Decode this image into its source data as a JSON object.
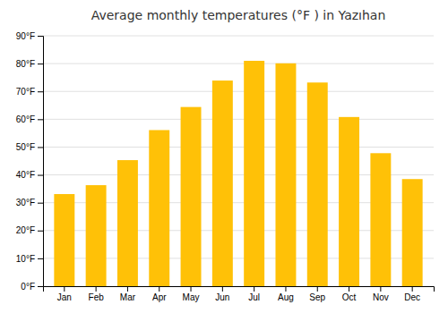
{
  "chart_data": {
    "type": "bar",
    "title": "Average monthly temperatures (°F ) in Yazıhan",
    "categories": [
      "Jan",
      "Feb",
      "Mar",
      "Apr",
      "May",
      "Jun",
      "Jul",
      "Aug",
      "Sep",
      "Oct",
      "Nov",
      "Dec"
    ],
    "values": [
      33.1,
      36.3,
      45.3,
      56.1,
      64.4,
      73.9,
      81.0,
      80.1,
      73.2,
      60.8,
      47.8,
      38.5
    ],
    "color": "#FFC107",
    "ylim": [
      0,
      90
    ],
    "yticks": [
      {
        "value": 0,
        "label": "0°F"
      },
      {
        "value": 10,
        "label": "10°F"
      },
      {
        "value": 20,
        "label": "20°F"
      },
      {
        "value": 30,
        "label": "30°F"
      },
      {
        "value": 40,
        "label": "40°F"
      },
      {
        "value": 50,
        "label": "50°F"
      },
      {
        "value": 60,
        "label": "60°F"
      },
      {
        "value": 70,
        "label": "70°F"
      },
      {
        "value": 80,
        "label": "80°F"
      },
      {
        "value": 90,
        "label": "90°F"
      }
    ],
    "grid": true
  }
}
